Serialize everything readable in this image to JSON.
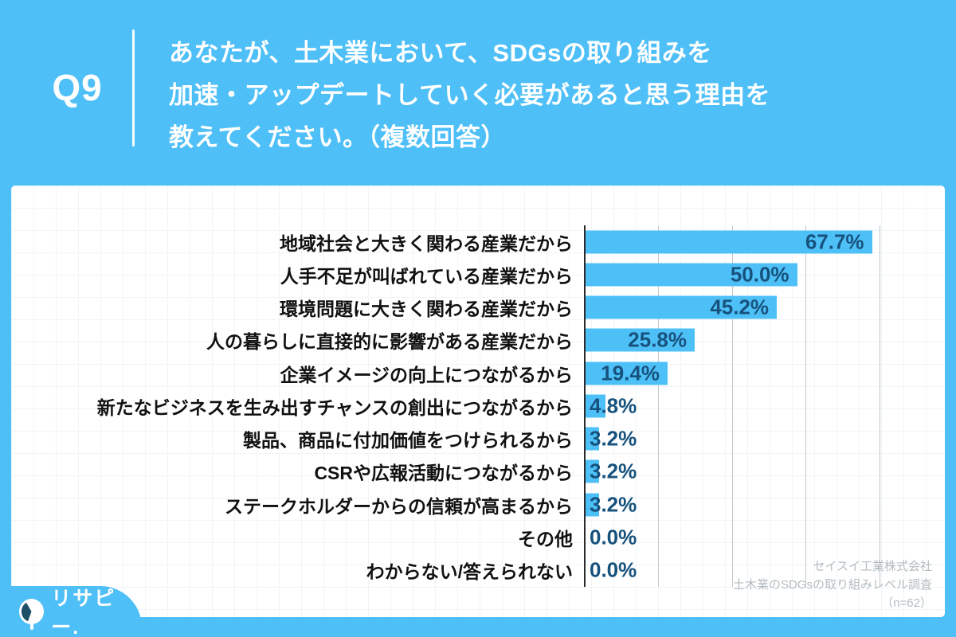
{
  "header": {
    "q_number": "Q9",
    "question_lines": [
      "あなたが、土木業において、SDGsの取り組みを",
      "加速・アップデートしていく必要があると思う理由を",
      "教えてください。（複数回答）"
    ]
  },
  "chart_data": {
    "type": "bar",
    "orientation": "horizontal",
    "categories": [
      "地域社会と大きく関わる産業だから",
      "人手不足が叫ばれている産業だから",
      "環境問題に大きく関わる産業だから",
      "人の暮らしに直接的に影響がある産業だから",
      "企業イメージの向上につながるから",
      "新たなビジネスを生み出すチャンスの創出につながるから",
      "製品、商品に付加価値をつけられるから",
      "CSRや広報活動につながるから",
      "ステークホルダーからの信頼が高まるから",
      "その他",
      "わからない/答えられない"
    ],
    "values": [
      67.7,
      50.0,
      45.2,
      25.8,
      19.4,
      4.8,
      3.2,
      3.2,
      3.2,
      0.0,
      0.0
    ],
    "value_labels": [
      "67.7%",
      "50.0%",
      "45.2%",
      "25.8%",
      "19.4%",
      "4.8%",
      "3.2%",
      "3.2%",
      "3.2%",
      "0.0%",
      "0.0%"
    ],
    "xlim": [
      0,
      85.3
    ],
    "grid": true,
    "gridline_values": [
      17.5,
      35.0,
      52.4,
      69.9
    ],
    "legend": "none",
    "bar_color": "#4EC0F8",
    "value_label_color": "#17527D"
  },
  "source": {
    "lines": [
      "セイスイ工業株式会社",
      "土木業のSDGsの取り組みレベル調査",
      "（n=62）"
    ]
  },
  "logo": {
    "text": "リサピー."
  },
  "colors": {
    "background": "#4EBFF7",
    "card": "#FFFFFF"
  }
}
